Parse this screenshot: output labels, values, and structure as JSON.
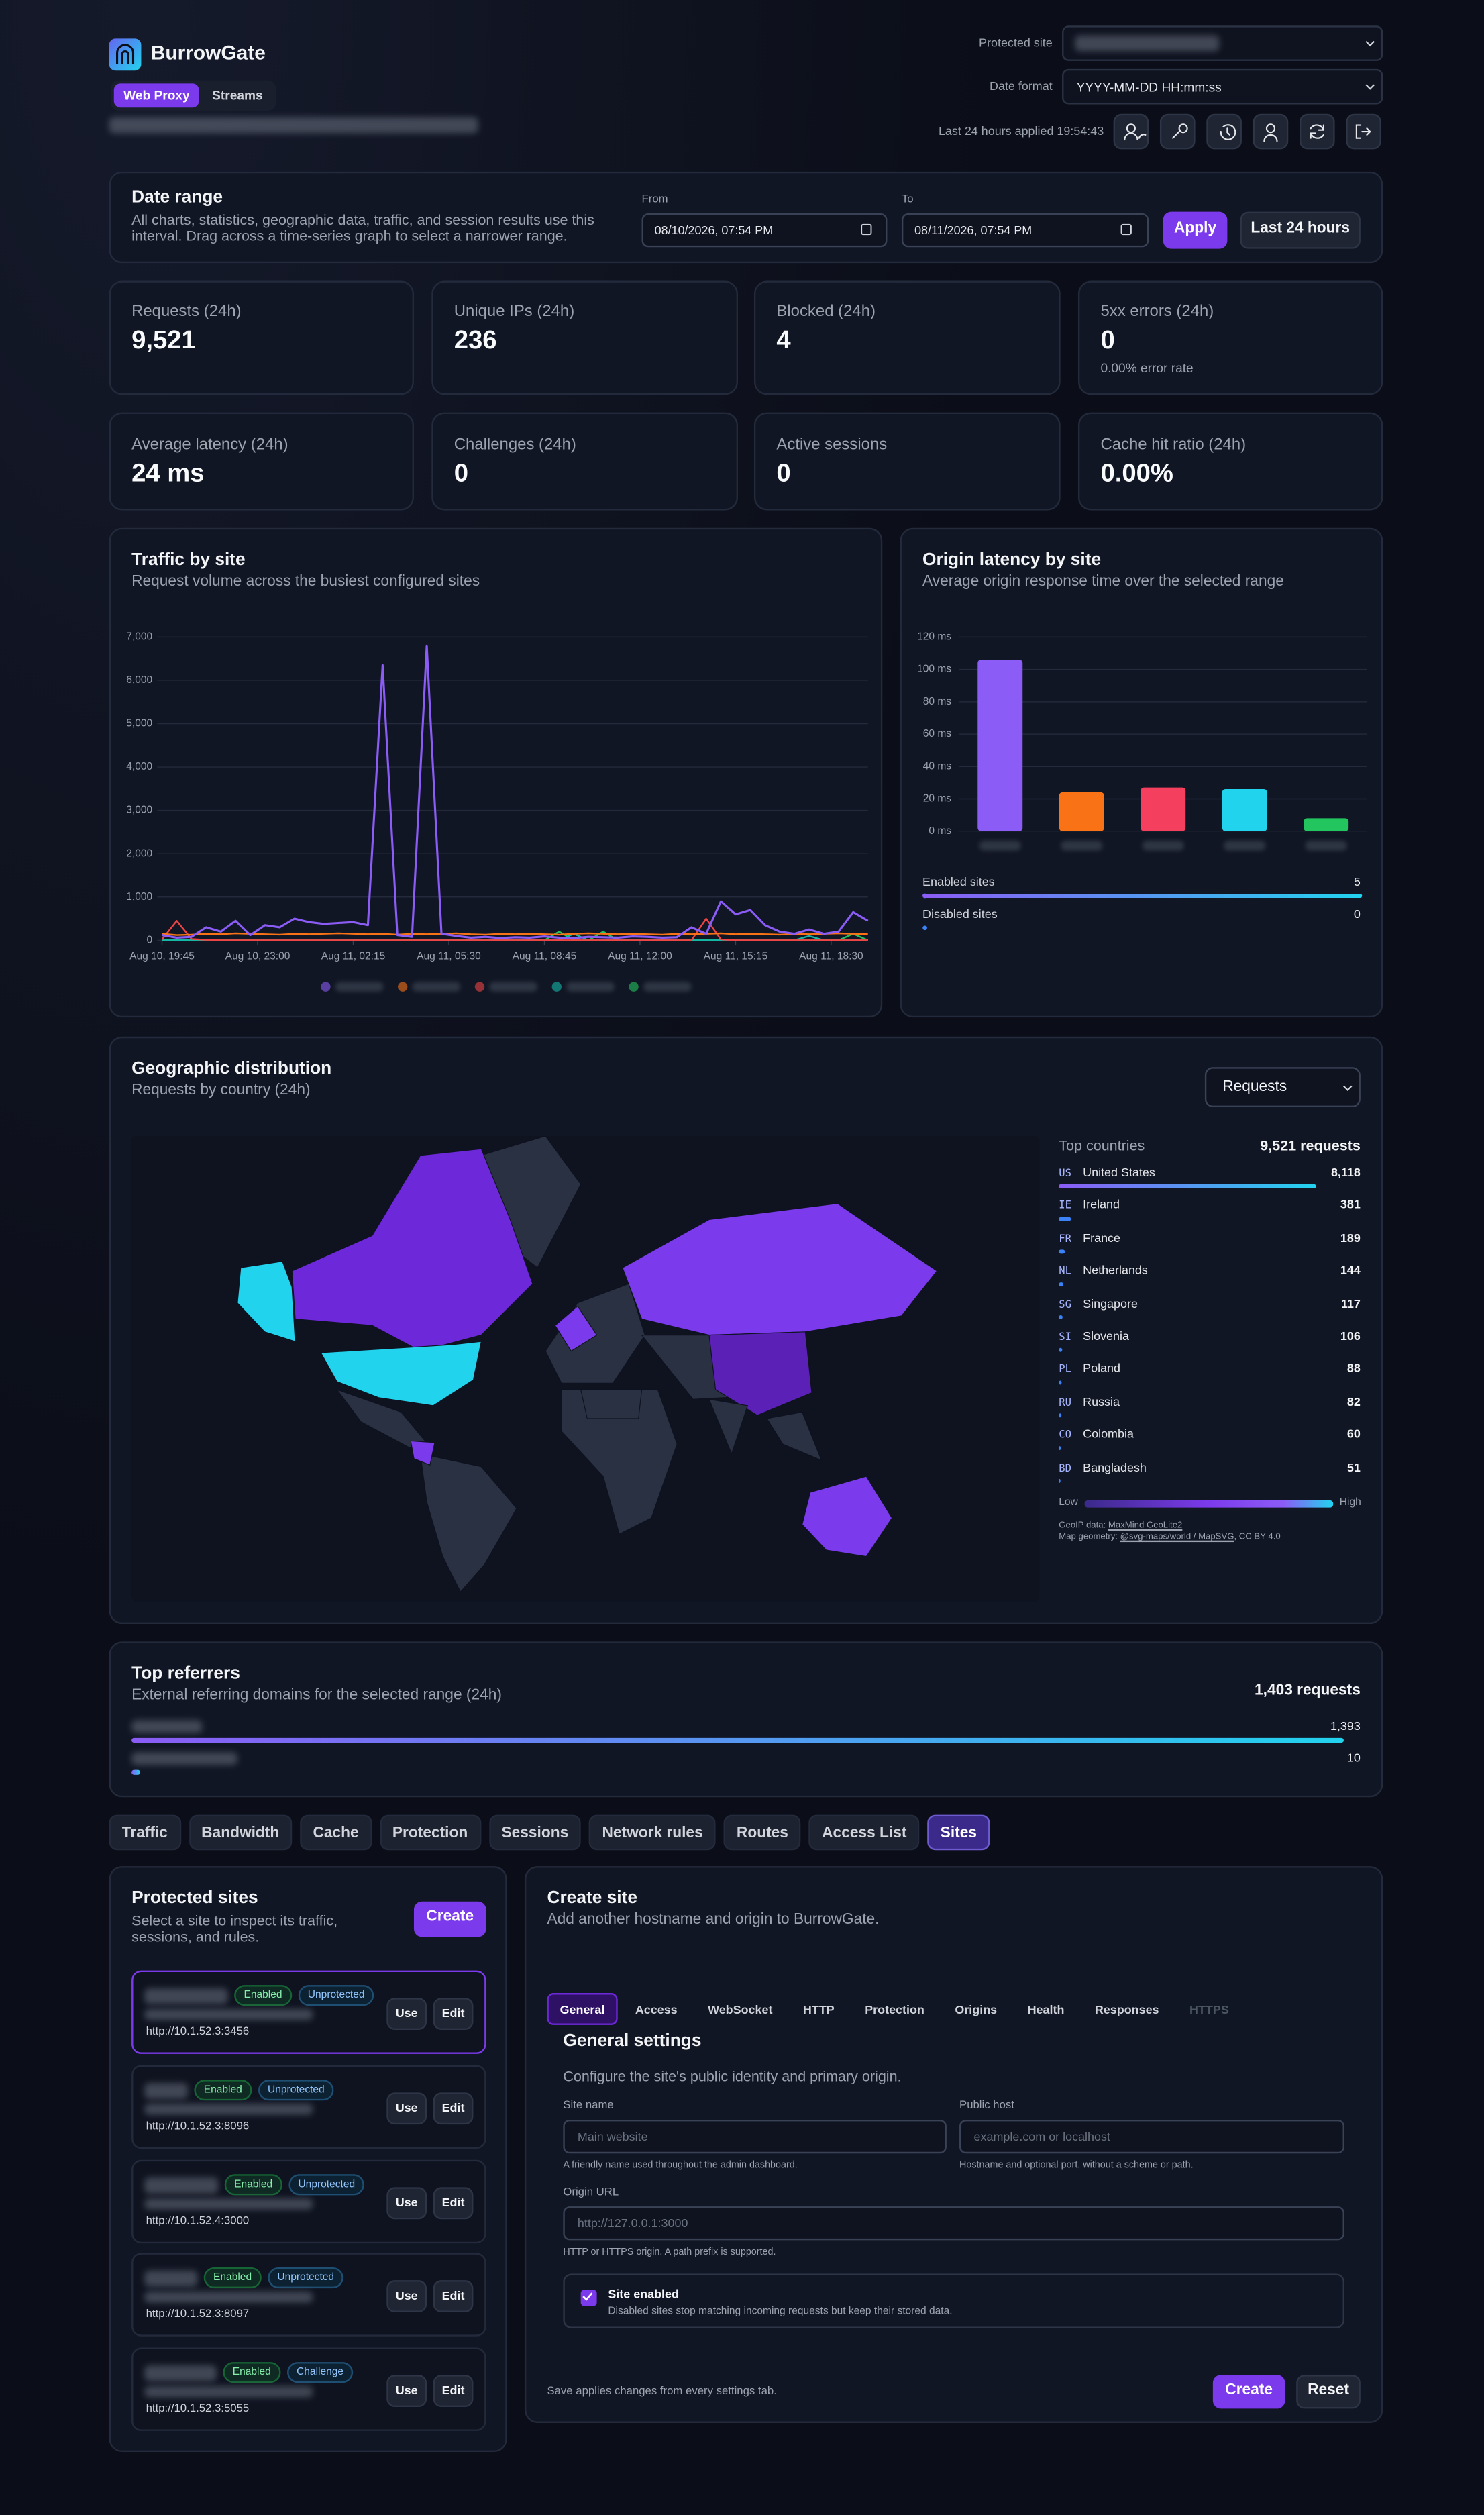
{
  "header": {
    "brand": "BurrowGate",
    "modes": [
      "Web Proxy",
      "Streams"
    ],
    "protected_site_label": "Protected site",
    "date_format_label": "Date format",
    "date_format": "YYYY-MM-DD HH:mm:ss",
    "applied": "Last 24 hours applied 19:54:43"
  },
  "date_range": {
    "title": "Date range",
    "description": "All charts, statistics, geographic data, traffic, and session results use this interval. Drag across a time-series graph to select a narrower range.",
    "from_label": "From",
    "from": "08/10/2026, 07:54 PM",
    "to_label": "To",
    "to": "08/11/2026, 07:54 PM",
    "apply": "Apply",
    "preset": "Last 24 hours"
  },
  "stats": [
    {
      "label": "Requests (24h)",
      "value": "9,521"
    },
    {
      "label": "Unique IPs (24h)",
      "value": "236"
    },
    {
      "label": "Blocked (24h)",
      "value": "4"
    },
    {
      "label": "5xx errors (24h)",
      "value": "0",
      "note": "0.00% error rate"
    },
    {
      "label": "Average latency (24h)",
      "value": "24 ms"
    },
    {
      "label": "Challenges (24h)",
      "value": "0"
    },
    {
      "label": "Active sessions",
      "value": "0"
    },
    {
      "label": "Cache hit ratio (24h)",
      "value": "0.00%"
    }
  ],
  "charts": {
    "traffic": {
      "type": "line",
      "title": "Traffic by site",
      "subtitle": "Request volume across the busiest configured sites",
      "x": [
        0,
        1,
        2,
        3,
        4,
        5,
        6,
        7,
        8,
        9,
        10,
        11,
        12,
        13,
        14,
        15,
        16,
        17,
        18,
        19,
        20,
        21,
        22,
        23,
        24,
        25,
        26,
        27,
        28,
        29,
        30,
        31,
        32,
        33,
        34,
        35,
        36,
        37,
        38,
        39,
        40,
        41,
        42,
        43,
        44,
        45,
        46,
        47,
        48
      ],
      "xlim": [
        0,
        48
      ],
      "xticks": [
        {
          "value": 0,
          "label": "Aug 10, 19:45"
        },
        {
          "value": 6.5,
          "label": "Aug 10, 23:00"
        },
        {
          "value": 13,
          "label": "Aug 11, 02:15"
        },
        {
          "value": 19.5,
          "label": "Aug 11, 05:30"
        },
        {
          "value": 26,
          "label": "Aug 11, 08:45"
        },
        {
          "value": 32.5,
          "label": "Aug 11, 12:00"
        },
        {
          "value": 39,
          "label": "Aug 11, 15:15"
        },
        {
          "value": 45.5,
          "label": "Aug 11, 18:30"
        }
      ],
      "ylim": [
        0,
        7000
      ],
      "yticks": [
        0,
        {
          "value": 1000,
          "label": "1,000"
        },
        {
          "value": 2000,
          "label": "2,000"
        },
        {
          "value": 3000,
          "label": "3,000"
        },
        {
          "value": 4000,
          "label": "4,000"
        },
        {
          "value": 5000,
          "label": "5,000"
        },
        {
          "value": 6000,
          "label": "6,000"
        },
        {
          "value": 7000,
          "label": "7,000"
        }
      ],
      "grid": true,
      "series": [
        {
          "color": "#8b5cf6",
          "values": [
            120,
            60,
            80,
            300,
            200,
            450,
            120,
            350,
            300,
            500,
            420,
            380,
            400,
            420,
            350,
            6350,
            120,
            80,
            6800,
            150,
            100,
            60,
            80,
            50,
            70,
            60,
            90,
            60,
            50,
            80,
            70,
            60,
            90,
            80,
            60,
            70,
            300,
            150,
            900,
            600,
            700,
            350,
            200,
            150,
            250,
            150,
            200,
            650,
            450
          ]
        },
        {
          "color": "#f97316",
          "values": [
            150,
            120,
            130,
            150,
            140,
            160,
            150,
            140,
            130,
            150,
            140,
            150,
            160,
            150,
            140,
            150,
            130,
            150,
            140,
            150,
            160,
            140,
            130,
            150,
            140,
            150,
            140,
            130,
            150,
            160,
            150,
            140,
            150,
            140,
            130,
            150,
            140,
            150,
            160,
            140,
            150,
            140,
            130,
            150,
            140,
            150,
            160,
            150,
            140
          ]
        },
        {
          "color": "#ef4444",
          "values": [
            20,
            450,
            30,
            10,
            0,
            0,
            0,
            0,
            0,
            0,
            0,
            0,
            0,
            0,
            0,
            0,
            0,
            0,
            0,
            0,
            0,
            0,
            0,
            0,
            0,
            0,
            0,
            0,
            0,
            0,
            0,
            0,
            0,
            0,
            0,
            0,
            0,
            500,
            20,
            0,
            0,
            0,
            0,
            0,
            0,
            0,
            0,
            0,
            0
          ]
        },
        {
          "color": "#14b8a6",
          "values": [
            0,
            0,
            0,
            0,
            0,
            0,
            0,
            0,
            0,
            0,
            0,
            0,
            0,
            0,
            0,
            0,
            0,
            0,
            0,
            0,
            0,
            0,
            0,
            0,
            0,
            0,
            0,
            0,
            150,
            0,
            0,
            0,
            0,
            0,
            0,
            0,
            0,
            0,
            0,
            0,
            0,
            0,
            0,
            0,
            100,
            0,
            0,
            0,
            0
          ]
        },
        {
          "color": "#22c55e",
          "values": [
            0,
            0,
            0,
            0,
            0,
            0,
            0,
            0,
            0,
            0,
            0,
            0,
            0,
            0,
            0,
            0,
            0,
            0,
            0,
            0,
            0,
            0,
            0,
            0,
            0,
            0,
            0,
            200,
            0,
            0,
            200,
            0,
            0,
            0,
            0,
            0,
            0,
            0,
            0,
            0,
            0,
            0,
            0,
            0,
            0,
            0,
            0,
            150,
            0
          ]
        }
      ]
    },
    "latency": {
      "type": "bar",
      "title": "Origin latency by site",
      "subtitle": "Average origin response time over the selected range",
      "categories": [
        null,
        null,
        null,
        null,
        null
      ],
      "values": [
        106,
        24,
        27,
        26,
        8
      ],
      "colors": [
        "#8b5cf6",
        "#f97316",
        "#f43f5e",
        "#22d3ee",
        "#22c55e"
      ],
      "ylim": [
        0,
        120
      ],
      "yticks": [
        {
          "value": 0,
          "label": "0 ms"
        },
        {
          "value": 20,
          "label": "20 ms"
        },
        {
          "value": 40,
          "label": "40 ms"
        },
        {
          "value": 60,
          "label": "60 ms"
        },
        {
          "value": 80,
          "label": "80 ms"
        },
        {
          "value": 100,
          "label": "100 ms"
        },
        {
          "value": 120,
          "label": "120 ms"
        }
      ],
      "grid": true,
      "enabled_label": "Enabled sites",
      "enabled": 5,
      "disabled_label": "Disabled sites",
      "disabled": 0
    }
  },
  "geo": {
    "title": "Geographic distribution",
    "subtitle": "Requests by country (24h)",
    "metric": "Requests",
    "top_label": "Top countries",
    "total": 9521,
    "total_label": "9,521 requests",
    "codes": [
      "US",
      "IE",
      "FR",
      "NL",
      "SG",
      "SI",
      "PL",
      "RU",
      "CO",
      "BD"
    ],
    "names": [
      "United States",
      "Ireland",
      "France",
      "Netherlands",
      "Singapore",
      "Slovenia",
      "Poland",
      "Russia",
      "Colombia",
      "Bangladesh"
    ],
    "values": [
      8118,
      381,
      189,
      144,
      117,
      106,
      88,
      82,
      60,
      51
    ],
    "value_labels": [
      "8,118",
      "381",
      "189",
      "144",
      "117",
      "106",
      "88",
      "82",
      "60",
      "51"
    ],
    "legend_low": "Low",
    "legend_high": "High",
    "credit_geoip": "GeoIP data:",
    "credit_geoip_link": "MaxMind GeoLite2",
    "credit_map": "Map geometry:",
    "credit_map_link": "@svg-maps/world / MapSVG",
    "credit_license": ", CC BY 4.0"
  },
  "referrers": {
    "title": "Top referrers",
    "subtitle": "External referring domains for the selected range (24h)",
    "total": 1403,
    "total_label": "1,403 requests",
    "values": [
      1393,
      10
    ],
    "value_labels": [
      "1,393",
      "10"
    ]
  },
  "tabs": [
    "Traffic",
    "Bandwidth",
    "Cache",
    "Protection",
    "Sessions",
    "Network rules",
    "Routes",
    "Access List",
    "Sites"
  ],
  "active_tab": 8,
  "sites": {
    "title": "Protected sites",
    "description": "Select a site to inspect its traffic, sessions, and rules.",
    "create": "Create",
    "use": "Use",
    "edit": "Edit",
    "items": [
      {
        "status": "Enabled",
        "mode": "Unprotected",
        "origin": "http://10.1.52.3:3456"
      },
      {
        "status": "Enabled",
        "mode": "Unprotected",
        "origin": "http://10.1.52.3:8096"
      },
      {
        "status": "Enabled",
        "mode": "Unprotected",
        "origin": "http://10.1.52.4:3000"
      },
      {
        "status": "Enabled",
        "mode": "Unprotected",
        "origin": "http://10.1.52.3:8097"
      },
      {
        "status": "Enabled",
        "mode": "Challenge",
        "origin": "http://10.1.52.3:5055"
      }
    ]
  },
  "create_site": {
    "title": "Create site",
    "subtitle": "Add another hostname and origin to BurrowGate.",
    "tabs": [
      "General",
      "Access",
      "WebSocket",
      "HTTP",
      "Protection",
      "Origins",
      "Health",
      "Responses",
      "HTTPS"
    ],
    "section_title": "General settings",
    "section_description": "Configure the site's public identity and primary origin.",
    "site_name": {
      "label": "Site name",
      "placeholder": "Main website",
      "hint": "A friendly name used throughout the admin dashboard."
    },
    "public_host": {
      "label": "Public host",
      "placeholder": "example.com or localhost",
      "hint": "Hostname and optional port, without a scheme or path."
    },
    "origin_url": {
      "label": "Origin URL",
      "placeholder": "http://127.0.0.1:3000",
      "hint": "HTTP or HTTPS origin. A path prefix is supported."
    },
    "enabled": {
      "label": "Site enabled",
      "hint": "Disabled sites stop matching incoming requests but keep their stored data."
    },
    "footer": "Save applies changes from every settings tab.",
    "create": "Create",
    "reset": "Reset"
  }
}
